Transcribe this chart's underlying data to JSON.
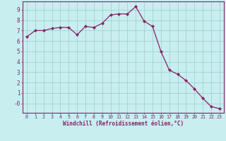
{
  "x": [
    0,
    1,
    2,
    3,
    4,
    5,
    6,
    7,
    8,
    9,
    10,
    11,
    12,
    13,
    14,
    15,
    16,
    17,
    18,
    19,
    20,
    21,
    22,
    23
  ],
  "y": [
    6.4,
    7.0,
    7.0,
    7.2,
    7.3,
    7.3,
    6.6,
    7.4,
    7.3,
    7.7,
    8.5,
    8.6,
    8.6,
    9.3,
    7.9,
    7.4,
    5.0,
    3.2,
    2.8,
    2.2,
    1.4,
    0.5,
    -0.3,
    -0.5
  ],
  "line_color": "#882266",
  "marker": "D",
  "marker_size": 2,
  "linewidth": 0.9,
  "background_color": "#c8eef0",
  "grid_color": "#99cccc",
  "xlabel": "Windchill (Refroidissement éolien,°C)",
  "xlabel_color": "#882266",
  "tick_color": "#882266",
  "spine_color": "#882266",
  "yticks": [
    0,
    1,
    2,
    3,
    4,
    5,
    6,
    7,
    8,
    9
  ],
  "ytick_labels": [
    "-0",
    "1",
    "2",
    "3",
    "4",
    "5",
    "6",
    "7",
    "8",
    "9"
  ],
  "ylim": [
    -0.9,
    9.8
  ],
  "xlim": [
    -0.5,
    23.5
  ],
  "xticks": [
    0,
    1,
    2,
    3,
    4,
    5,
    6,
    7,
    8,
    9,
    10,
    11,
    12,
    13,
    14,
    15,
    16,
    17,
    18,
    19,
    20,
    21,
    22,
    23
  ]
}
